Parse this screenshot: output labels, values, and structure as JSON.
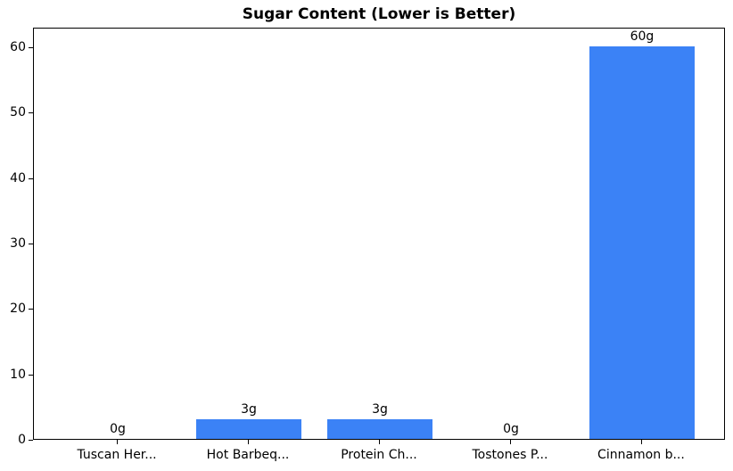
{
  "chart_data": {
    "type": "bar",
    "title": "Sugar Content (Lower is Better)",
    "categories": [
      "Tuscan Her...",
      "Hot Barbeq...",
      "Protein Ch...",
      "Tostones P...",
      "Cinnamon b..."
    ],
    "values": [
      0,
      3,
      3,
      0,
      60
    ],
    "value_labels": [
      "0g",
      "3g",
      "3g",
      "0g",
      "60g"
    ],
    "yticks": [
      "0",
      "10",
      "20",
      "30",
      "40",
      "50",
      "60"
    ],
    "ytick_values": [
      0,
      10,
      20,
      30,
      40,
      50,
      60
    ],
    "ylim": [
      0,
      63
    ],
    "xlim": [
      -0.64,
      4.64
    ],
    "bar_width_data_units": 0.8,
    "bar_color": "#3b82f6",
    "axis_color": "#000000",
    "background_color": "#ffffff",
    "grid": false,
    "legend_position": "none",
    "xlabel": "",
    "ylabel": ""
  }
}
